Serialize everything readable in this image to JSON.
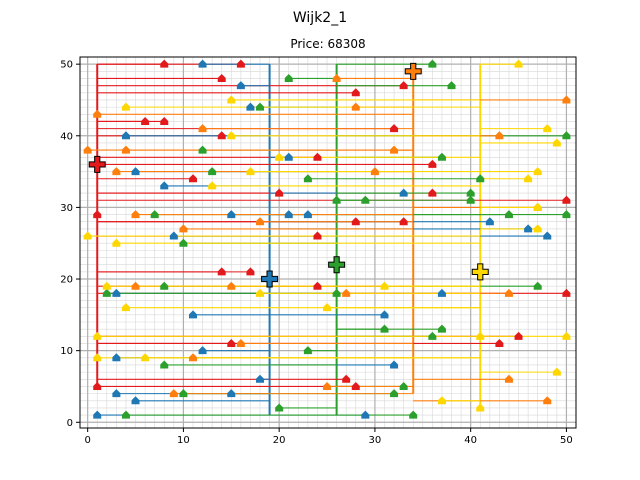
{
  "chart_data": {
    "type": "scatter",
    "title": "Wijk2_1",
    "subtitle": "Price: 68308",
    "xlabel": "",
    "ylabel": "",
    "xlim": [
      -0.8,
      51
    ],
    "ylim": [
      -0.8,
      51
    ],
    "x_ticks": [
      0,
      10,
      20,
      30,
      40,
      50
    ],
    "y_ticks": [
      0,
      10,
      20,
      30,
      40,
      50
    ],
    "grid": true,
    "colors": {
      "red": "#e31a1c",
      "blue": "#1f77b4",
      "green": "#2ca02c",
      "orange": "#ff7f0e",
      "yellow": "#ffd700",
      "major_grid": "#b0b0b0",
      "minor_grid": "#d8d8d8"
    },
    "batteries": [
      {
        "color": "red",
        "x": 1,
        "y": 36
      },
      {
        "color": "blue",
        "x": 19,
        "y": 20
      },
      {
        "color": "green",
        "x": 26,
        "y": 22
      },
      {
        "color": "orange",
        "x": 34,
        "y": 49
      },
      {
        "color": "yellow",
        "x": 41,
        "y": 21
      }
    ],
    "trunks": [
      {
        "color": "red",
        "x": 1,
        "y0": 5,
        "y1": 50
      },
      {
        "color": "blue",
        "x": 19,
        "y0": 1,
        "y1": 50
      },
      {
        "color": "green",
        "x": 26,
        "y0": 1,
        "y1": 50
      },
      {
        "color": "orange",
        "x": 34,
        "y0": 4,
        "y1": 49
      },
      {
        "color": "yellow",
        "x": 41,
        "y0": 2,
        "y1": 50
      }
    ],
    "houses": [
      {
        "color": "red",
        "x": 8,
        "y": 50
      },
      {
        "color": "red",
        "x": 16,
        "y": 50
      },
      {
        "color": "red",
        "x": 14,
        "y": 48
      },
      {
        "color": "red",
        "x": 6,
        "y": 42
      },
      {
        "color": "red",
        "x": 8,
        "y": 42
      },
      {
        "color": "red",
        "x": 14,
        "y": 40
      },
      {
        "color": "red",
        "x": 28,
        "y": 46
      },
      {
        "color": "red",
        "x": 33,
        "y": 47
      },
      {
        "color": "red",
        "x": 32,
        "y": 41
      },
      {
        "color": "red",
        "x": 24,
        "y": 37
      },
      {
        "color": "red",
        "x": 36,
        "y": 36
      },
      {
        "color": "red",
        "x": 11,
        "y": 34
      },
      {
        "color": "red",
        "x": 20,
        "y": 32
      },
      {
        "color": "red",
        "x": 36,
        "y": 32
      },
      {
        "color": "red",
        "x": 1,
        "y": 29
      },
      {
        "color": "red",
        "x": 28,
        "y": 28
      },
      {
        "color": "red",
        "x": 33,
        "y": 28
      },
      {
        "color": "red",
        "x": 50,
        "y": 31
      },
      {
        "color": "red",
        "x": 24,
        "y": 26
      },
      {
        "color": "red",
        "x": 14,
        "y": 21
      },
      {
        "color": "red",
        "x": 17,
        "y": 21
      },
      {
        "color": "red",
        "x": 24,
        "y": 19
      },
      {
        "color": "red",
        "x": 50,
        "y": 18
      },
      {
        "color": "red",
        "x": 45,
        "y": 12
      },
      {
        "color": "red",
        "x": 43,
        "y": 11
      },
      {
        "color": "red",
        "x": 1,
        "y": 5
      },
      {
        "color": "red",
        "x": 27,
        "y": 6
      },
      {
        "color": "red",
        "x": 28,
        "y": 5
      },
      {
        "color": "red",
        "x": 15,
        "y": 11
      },
      {
        "color": "blue",
        "x": 12,
        "y": 50
      },
      {
        "color": "blue",
        "x": 16,
        "y": 47
      },
      {
        "color": "blue",
        "x": 17,
        "y": 44
      },
      {
        "color": "blue",
        "x": 4,
        "y": 40
      },
      {
        "color": "blue",
        "x": 5,
        "y": 35
      },
      {
        "color": "blue",
        "x": 8,
        "y": 33
      },
      {
        "color": "blue",
        "x": 21,
        "y": 37
      },
      {
        "color": "blue",
        "x": 15,
        "y": 29
      },
      {
        "color": "blue",
        "x": 21,
        "y": 29
      },
      {
        "color": "blue",
        "x": 23,
        "y": 29
      },
      {
        "color": "blue",
        "x": 9,
        "y": 26
      },
      {
        "color": "blue",
        "x": 3,
        "y": 18
      },
      {
        "color": "blue",
        "x": 11,
        "y": 15
      },
      {
        "color": "blue",
        "x": 31,
        "y": 15
      },
      {
        "color": "blue",
        "x": 12,
        "y": 10
      },
      {
        "color": "blue",
        "x": 33,
        "y": 32
      },
      {
        "color": "blue",
        "x": 42,
        "y": 28
      },
      {
        "color": "blue",
        "x": 48,
        "y": 26
      },
      {
        "color": "blue",
        "x": 46,
        "y": 27
      },
      {
        "color": "blue",
        "x": 37,
        "y": 18
      },
      {
        "color": "blue",
        "x": 3,
        "y": 9
      },
      {
        "color": "blue",
        "x": 32,
        "y": 8
      },
      {
        "color": "blue",
        "x": 18,
        "y": 6
      },
      {
        "color": "blue",
        "x": 3,
        "y": 4
      },
      {
        "color": "blue",
        "x": 5,
        "y": 3
      },
      {
        "color": "blue",
        "x": 15,
        "y": 4
      },
      {
        "color": "blue",
        "x": 1,
        "y": 1
      },
      {
        "color": "blue",
        "x": 29,
        "y": 1
      },
      {
        "color": "green",
        "x": 21,
        "y": 48
      },
      {
        "color": "green",
        "x": 36,
        "y": 50
      },
      {
        "color": "green",
        "x": 38,
        "y": 47
      },
      {
        "color": "green",
        "x": 18,
        "y": 44
      },
      {
        "color": "green",
        "x": 12,
        "y": 38
      },
      {
        "color": "green",
        "x": 13,
        "y": 35
      },
      {
        "color": "green",
        "x": 37,
        "y": 37
      },
      {
        "color": "green",
        "x": 23,
        "y": 34
      },
      {
        "color": "green",
        "x": 41,
        "y": 34
      },
      {
        "color": "green",
        "x": 7,
        "y": 29
      },
      {
        "color": "green",
        "x": 26,
        "y": 31
      },
      {
        "color": "green",
        "x": 29,
        "y": 31
      },
      {
        "color": "green",
        "x": 40,
        "y": 32
      },
      {
        "color": "green",
        "x": 40,
        "y": 31
      },
      {
        "color": "green",
        "x": 44,
        "y": 29
      },
      {
        "color": "green",
        "x": 50,
        "y": 29
      },
      {
        "color": "green",
        "x": 50,
        "y": 40
      },
      {
        "color": "green",
        "x": 10,
        "y": 25
      },
      {
        "color": "green",
        "x": 2,
        "y": 18
      },
      {
        "color": "green",
        "x": 8,
        "y": 19
      },
      {
        "color": "green",
        "x": 26,
        "y": 18
      },
      {
        "color": "green",
        "x": 47,
        "y": 19
      },
      {
        "color": "green",
        "x": 31,
        "y": 13
      },
      {
        "color": "green",
        "x": 36,
        "y": 12
      },
      {
        "color": "green",
        "x": 37,
        "y": 13
      },
      {
        "color": "green",
        "x": 23,
        "y": 10
      },
      {
        "color": "green",
        "x": 8,
        "y": 8
      },
      {
        "color": "green",
        "x": 10,
        "y": 4
      },
      {
        "color": "green",
        "x": 20,
        "y": 2
      },
      {
        "color": "green",
        "x": 32,
        "y": 4
      },
      {
        "color": "green",
        "x": 33,
        "y": 5
      },
      {
        "color": "green",
        "x": 4,
        "y": 1
      },
      {
        "color": "green",
        "x": 34,
        "y": 1
      },
      {
        "color": "orange",
        "x": 26,
        "y": 48
      },
      {
        "color": "orange",
        "x": 28,
        "y": 44
      },
      {
        "color": "orange",
        "x": 50,
        "y": 45
      },
      {
        "color": "orange",
        "x": 1,
        "y": 43
      },
      {
        "color": "orange",
        "x": 12,
        "y": 41
      },
      {
        "color": "orange",
        "x": 0,
        "y": 38
      },
      {
        "color": "orange",
        "x": 4,
        "y": 38
      },
      {
        "color": "orange",
        "x": 32,
        "y": 38
      },
      {
        "color": "orange",
        "x": 43,
        "y": 40
      },
      {
        "color": "orange",
        "x": 3,
        "y": 35
      },
      {
        "color": "orange",
        "x": 30,
        "y": 35
      },
      {
        "color": "orange",
        "x": 5,
        "y": 29
      },
      {
        "color": "orange",
        "x": 18,
        "y": 28
      },
      {
        "color": "orange",
        "x": 10,
        "y": 27
      },
      {
        "color": "orange",
        "x": 47,
        "y": 30
      },
      {
        "color": "orange",
        "x": 5,
        "y": 19
      },
      {
        "color": "orange",
        "x": 15,
        "y": 19
      },
      {
        "color": "orange",
        "x": 27,
        "y": 18
      },
      {
        "color": "orange",
        "x": 44,
        "y": 18
      },
      {
        "color": "orange",
        "x": 16,
        "y": 11
      },
      {
        "color": "orange",
        "x": 11,
        "y": 9
      },
      {
        "color": "orange",
        "x": 25,
        "y": 5
      },
      {
        "color": "orange",
        "x": 9,
        "y": 4
      },
      {
        "color": "orange",
        "x": 44,
        "y": 6
      },
      {
        "color": "orange",
        "x": 48,
        "y": 3
      },
      {
        "color": "yellow",
        "x": 45,
        "y": 50
      },
      {
        "color": "yellow",
        "x": 4,
        "y": 44
      },
      {
        "color": "yellow",
        "x": 15,
        "y": 45
      },
      {
        "color": "yellow",
        "x": 15,
        "y": 40
      },
      {
        "color": "yellow",
        "x": 48,
        "y": 41
      },
      {
        "color": "yellow",
        "x": 49,
        "y": 39
      },
      {
        "color": "yellow",
        "x": 20,
        "y": 37
      },
      {
        "color": "yellow",
        "x": 17,
        "y": 35
      },
      {
        "color": "yellow",
        "x": 13,
        "y": 33
      },
      {
        "color": "yellow",
        "x": 46,
        "y": 34
      },
      {
        "color": "yellow",
        "x": 47,
        "y": 35
      },
      {
        "color": "yellow",
        "x": 0,
        "y": 26
      },
      {
        "color": "yellow",
        "x": 3,
        "y": 25
      },
      {
        "color": "yellow",
        "x": 47,
        "y": 30
      },
      {
        "color": "yellow",
        "x": 47,
        "y": 27
      },
      {
        "color": "yellow",
        "x": 2,
        "y": 19
      },
      {
        "color": "yellow",
        "x": 18,
        "y": 18
      },
      {
        "color": "yellow",
        "x": 31,
        "y": 19
      },
      {
        "color": "yellow",
        "x": 25,
        "y": 16
      },
      {
        "color": "yellow",
        "x": 4,
        "y": 16
      },
      {
        "color": "yellow",
        "x": 1,
        "y": 12
      },
      {
        "color": "yellow",
        "x": 41,
        "y": 12
      },
      {
        "color": "yellow",
        "x": 50,
        "y": 12
      },
      {
        "color": "yellow",
        "x": 1,
        "y": 9
      },
      {
        "color": "yellow",
        "x": 6,
        "y": 9
      },
      {
        "color": "yellow",
        "x": 49,
        "y": 7
      },
      {
        "color": "yellow",
        "x": 37,
        "y": 3
      },
      {
        "color": "yellow",
        "x": 41,
        "y": 2
      }
    ]
  }
}
